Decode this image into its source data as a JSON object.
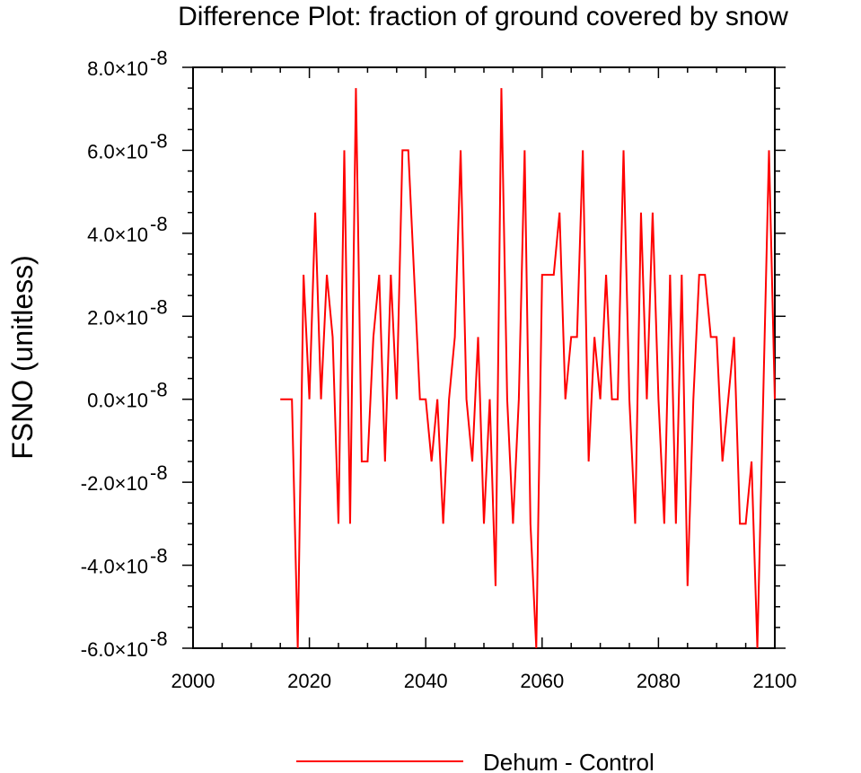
{
  "chart_data": {
    "type": "line",
    "title": "Difference Plot: fraction of ground covered by snow",
    "xlabel": "",
    "ylabel": "FSNO  (unitless)",
    "xlim": [
      2000,
      2100
    ],
    "ylim": [
      -6e-08,
      8e-08
    ],
    "x_ticks": [
      2000,
      2020,
      2040,
      2060,
      2080,
      2100
    ],
    "x_tick_labels": [
      "2000",
      "2020",
      "2040",
      "2060",
      "2080",
      "2100"
    ],
    "y_ticks": [
      -6e-08,
      -4e-08,
      -2e-08,
      0.0,
      2e-08,
      4e-08,
      6e-08,
      8e-08
    ],
    "y_tick_mantissas": [
      "-6.0",
      "-4.0",
      "-2.0",
      "0.0",
      "2.0",
      "4.0",
      "6.0",
      "8.0"
    ],
    "y_tick_times": "×10",
    "y_tick_exponent": "-8",
    "legend_position": "bottom-center",
    "series": [
      {
        "name": "Dehum - Control",
        "color": "#ff0000",
        "x": [
          2015,
          2016,
          2017,
          2018,
          2019,
          2020,
          2021,
          2022,
          2023,
          2024,
          2025,
          2026,
          2027,
          2028,
          2029,
          2030,
          2031,
          2032,
          2033,
          2034,
          2035,
          2036,
          2037,
          2038,
          2039,
          2040,
          2041,
          2042,
          2043,
          2044,
          2045,
          2046,
          2047,
          2048,
          2049,
          2050,
          2051,
          2052,
          2053,
          2054,
          2055,
          2056,
          2057,
          2058,
          2059,
          2060,
          2061,
          2062,
          2063,
          2064,
          2065,
          2066,
          2067,
          2068,
          2069,
          2070,
          2071,
          2072,
          2073,
          2074,
          2075,
          2076,
          2077,
          2078,
          2079,
          2080,
          2081,
          2082,
          2083,
          2084,
          2085,
          2086,
          2087,
          2088,
          2089,
          2090,
          2091,
          2092,
          2093,
          2094,
          2095,
          2096,
          2097,
          2098,
          2099,
          2100
        ],
        "values": [
          0,
          0,
          0,
          -6e-08,
          3e-08,
          0,
          4.5e-08,
          0,
          3e-08,
          1.5e-08,
          -3e-08,
          6e-08,
          -3e-08,
          7.5e-08,
          -1.5e-08,
          -1.5e-08,
          1.5e-08,
          3e-08,
          -1.5e-08,
          3e-08,
          0,
          6e-08,
          6e-08,
          3e-08,
          0,
          0,
          -1.5e-08,
          0,
          -3e-08,
          0,
          1.5e-08,
          6e-08,
          0,
          -1.5e-08,
          1.5e-08,
          -3e-08,
          0,
          -4.5e-08,
          7.5e-08,
          0,
          -3e-08,
          0,
          6e-08,
          -3e-08,
          -6e-08,
          3e-08,
          3e-08,
          3e-08,
          4.5e-08,
          0,
          1.5e-08,
          1.5e-08,
          6e-08,
          -1.5e-08,
          1.5e-08,
          0,
          3e-08,
          0,
          0,
          6e-08,
          0,
          -3e-08,
          4.5e-08,
          0,
          4.5e-08,
          0,
          -3e-08,
          3e-08,
          -3e-08,
          3e-08,
          -4.5e-08,
          0,
          3e-08,
          3e-08,
          1.5e-08,
          1.5e-08,
          -1.5e-08,
          0,
          1.5e-08,
          -3e-08,
          -3e-08,
          -1.5e-08,
          -6e-08,
          0,
          6e-08,
          0
        ]
      }
    ]
  }
}
